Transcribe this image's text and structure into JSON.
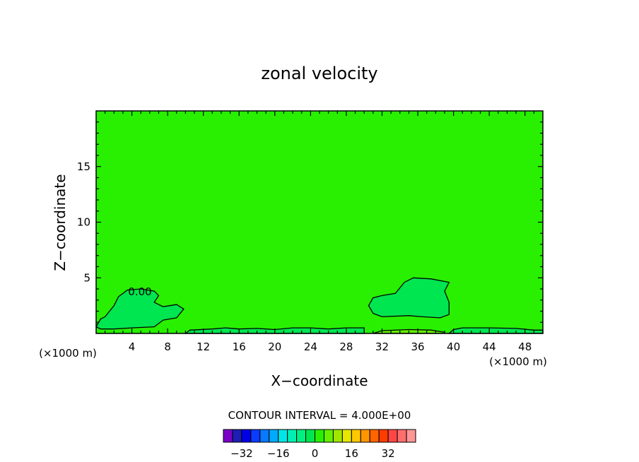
{
  "chart_data": {
    "type": "heatmap",
    "title": "zonal velocity",
    "xlabel": "X−coordinate",
    "ylabel": "Z−coordinate",
    "x_unit_left": "(×1000 m)",
    "x_unit_right": "(×1000 m)",
    "xlim": [
      0,
      50
    ],
    "ylim": [
      0,
      20
    ],
    "xticks": [
      4,
      8,
      12,
      16,
      20,
      24,
      28,
      32,
      36,
      40,
      44,
      48
    ],
    "yticks": [
      5,
      10,
      15
    ],
    "contour_label": "0.00",
    "contour_interval_text": "CONTOUR INTERVAL = 4.000E+00",
    "colorbar": {
      "colors": [
        "#7a00c8",
        "#1e1eb4",
        "#0000e6",
        "#0a3cff",
        "#0a78ff",
        "#00aaff",
        "#00e6e6",
        "#00f0b4",
        "#00f082",
        "#00e650",
        "#28f000",
        "#64f000",
        "#a0e600",
        "#e6e600",
        "#ffc800",
        "#ff9600",
        "#ff6400",
        "#ff3c00",
        "#ff4646",
        "#ff6e6e",
        "#ff9696"
      ],
      "tick_labels": [
        "−32",
        "−16",
        "0",
        "16",
        "32"
      ],
      "tick_values": [
        -32,
        -16,
        0,
        16,
        32
      ]
    },
    "field_colors": {
      "background": "#28f000",
      "weak_negative": "#00e650",
      "weak_positive": "#64f000"
    },
    "regions": [
      {
        "name": "negative-cell-left",
        "points": [
          [
            0.0,
            0.6
          ],
          [
            0.5,
            1.3
          ],
          [
            1.0,
            1.5
          ],
          [
            2.0,
            2.5
          ],
          [
            2.5,
            3.3
          ],
          [
            3.5,
            3.9
          ],
          [
            5.0,
            4.0
          ],
          [
            6.5,
            3.8
          ],
          [
            7.0,
            3.4
          ],
          [
            6.5,
            2.8
          ],
          [
            7.5,
            2.4
          ],
          [
            9.0,
            2.6
          ],
          [
            9.8,
            2.2
          ],
          [
            9.0,
            1.4
          ],
          [
            7.5,
            1.2
          ],
          [
            6.5,
            0.6
          ],
          [
            4.0,
            0.5
          ],
          [
            2.0,
            0.4
          ],
          [
            0.5,
            0.4
          ]
        ]
      },
      {
        "name": "negative-cell-right",
        "points": [
          [
            30.5,
            2.5
          ],
          [
            31.0,
            3.2
          ],
          [
            32.0,
            3.4
          ],
          [
            33.5,
            3.6
          ],
          [
            34.5,
            4.6
          ],
          [
            35.5,
            5.0
          ],
          [
            37.5,
            4.9
          ],
          [
            39.5,
            4.6
          ],
          [
            39.0,
            3.8
          ],
          [
            39.5,
            2.8
          ],
          [
            39.5,
            1.7
          ],
          [
            38.5,
            1.4
          ],
          [
            36.5,
            1.5
          ],
          [
            35.0,
            1.6
          ],
          [
            32.0,
            1.5
          ],
          [
            31.0,
            1.8
          ]
        ]
      },
      {
        "name": "negative-strip-bottom",
        "points": [
          [
            10.0,
            0.0
          ],
          [
            10.5,
            0.3
          ],
          [
            13.0,
            0.4
          ],
          [
            14.5,
            0.5
          ],
          [
            16.0,
            0.4
          ],
          [
            18.0,
            0.45
          ],
          [
            20.0,
            0.35
          ],
          [
            22.0,
            0.5
          ],
          [
            24.0,
            0.5
          ],
          [
            26.0,
            0.4
          ],
          [
            28.0,
            0.5
          ],
          [
            30.0,
            0.5
          ],
          [
            30.0,
            0.0
          ]
        ]
      },
      {
        "name": "negative-strip-right",
        "points": [
          [
            39.5,
            0.0
          ],
          [
            40.0,
            0.35
          ],
          [
            41.0,
            0.5
          ],
          [
            44.0,
            0.5
          ],
          [
            47.0,
            0.45
          ],
          [
            49.0,
            0.3
          ],
          [
            50.0,
            0.3
          ],
          [
            50.0,
            0.0
          ]
        ]
      },
      {
        "name": "positive-strip-bottom",
        "points": [
          [
            31.0,
            0.0
          ],
          [
            32.0,
            0.25
          ],
          [
            35.0,
            0.35
          ],
          [
            37.5,
            0.3
          ],
          [
            39.0,
            0.1
          ],
          [
            39.0,
            0.0
          ]
        ]
      }
    ]
  }
}
